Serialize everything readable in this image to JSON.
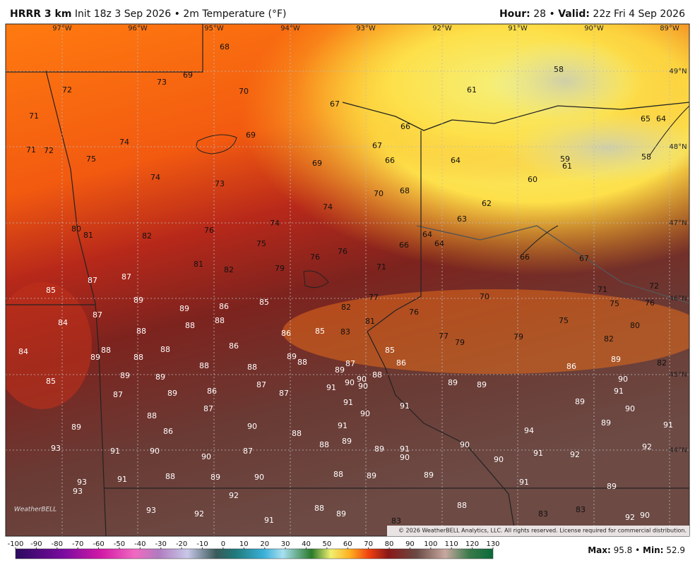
{
  "header": {
    "model": "HRRR 3 km",
    "init": "Init 18z 3 Sep 2026",
    "separator": "•",
    "field": "2m Temperature (°F)",
    "hour_label": "Hour:",
    "hour": "28",
    "valid_label": "Valid:",
    "valid": "22z Fri 4 Sep 2026"
  },
  "map": {
    "longitudes": [
      "97°W",
      "96°W",
      "95°W",
      "94°W",
      "93°W",
      "92°W",
      "91°W",
      "90°W",
      "89°W"
    ],
    "latitudes": [
      "49°N",
      "48°N",
      "47°N",
      "46°N",
      "45°N",
      "44°N"
    ],
    "temperatures": [
      73,
      72,
      69,
      68,
      70,
      71,
      71,
      72,
      75,
      74,
      69,
      74,
      73,
      67,
      66,
      67,
      66,
      69,
      64,
      58,
      61,
      65,
      64,
      59,
      61,
      58,
      60,
      70,
      68,
      74,
      74,
      62,
      63,
      64,
      64,
      80,
      81,
      82,
      76,
      75,
      76,
      76,
      66,
      66,
      67,
      81,
      82,
      79,
      71,
      85,
      87,
      87,
      71,
      72,
      89,
      89,
      86,
      85,
      77,
      76,
      70,
      75,
      76,
      82,
      87,
      84,
      88,
      88,
      88,
      86,
      85,
      83,
      81,
      77,
      79,
      79,
      75,
      80,
      82,
      84,
      88,
      89,
      88,
      88,
      86,
      89,
      88,
      85,
      86,
      89,
      82,
      88,
      88,
      87,
      89,
      88,
      86,
      89,
      89,
      85,
      90,
      90,
      90,
      89,
      89,
      90,
      87,
      87,
      91,
      86,
      89,
      87,
      91,
      91,
      91,
      89,
      90,
      87,
      90,
      88,
      89,
      89,
      91,
      86,
      90,
      88,
      91,
      94,
      93,
      91,
      90,
      90,
      87,
      88,
      89,
      89,
      91,
      90,
      90,
      91,
      92,
      92,
      90,
      91,
      88,
      89,
      90,
      88,
      89,
      89,
      93,
      93,
      91,
      89,
      92,
      93,
      92,
      88,
      89,
      88,
      91,
      83,
      83,
      83,
      92,
      90
    ]
  },
  "colorbar": {
    "ticks": [
      -100,
      -90,
      -80,
      -70,
      -60,
      -50,
      -40,
      -30,
      -20,
      -10,
      0,
      10,
      20,
      30,
      40,
      50,
      60,
      70,
      80,
      90,
      100,
      110,
      120,
      130
    ]
  },
  "footer": {
    "max_label": "Max:",
    "max": 95.8,
    "min_label": "Min:",
    "min": 52.9
  },
  "copyright": "© 2026 WeatherBELL Analytics, LLC. All rights reserved. License required for commercial distribution.",
  "logo": "WeatherBELL"
}
